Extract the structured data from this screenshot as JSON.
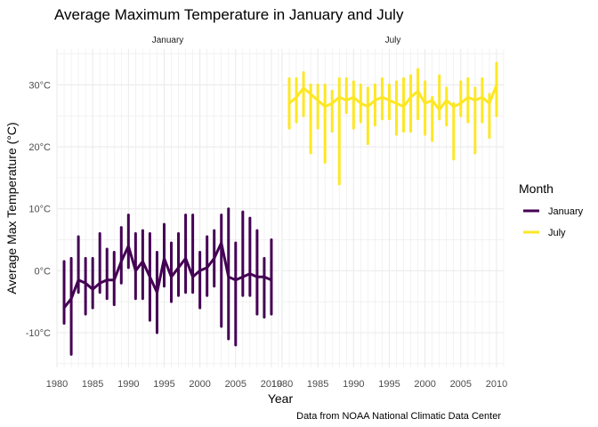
{
  "chart_data": {
    "type": "line",
    "title": "Average Maximum Temperature in January and July",
    "xlabel": "Year",
    "ylabel": "Average Max Temperature (°C)",
    "caption": "Data from NOAA National Climatic Data Center",
    "panels": [
      "January",
      "July"
    ],
    "xlim": [
      1980,
      2011
    ],
    "ylim": [
      -15.6,
      35.8
    ],
    "x_ticks": [
      1980,
      1985,
      1990,
      1995,
      2000,
      2005,
      2010
    ],
    "x_tick_labels": [
      "1980",
      "1985",
      "1990",
      "1995",
      "2000",
      "2005",
      "2010"
    ],
    "y_ticks": [
      -10,
      0,
      10,
      20,
      30
    ],
    "y_tick_labels": [
      "-10°C",
      "0°C",
      "10°C",
      "20°C",
      "30°C"
    ],
    "grid": true,
    "legend": {
      "title": "Month",
      "position": "right"
    },
    "series": [
      {
        "name": "January",
        "panel": "January",
        "color": "#440154",
        "mean": [
          [
            1981,
            -6.0
          ],
          [
            1982,
            -4.5
          ],
          [
            1983,
            -1.5
          ],
          [
            1984,
            -2.0
          ],
          [
            1985,
            -3.0
          ],
          [
            1986,
            -2.0
          ],
          [
            1987,
            -1.5
          ],
          [
            1988,
            -1.5
          ],
          [
            1989,
            1.5
          ],
          [
            1990,
            4.0
          ],
          [
            1991,
            0.0
          ],
          [
            1992,
            1.5
          ],
          [
            1993,
            -1.0
          ],
          [
            1994,
            -3.5
          ],
          [
            1995,
            2.0
          ],
          [
            1996,
            -1.0
          ],
          [
            1997,
            0.5
          ],
          [
            1998,
            2.0
          ],
          [
            1999,
            -1.0
          ],
          [
            2000,
            0.0
          ],
          [
            2001,
            0.5
          ],
          [
            2002,
            2.0
          ],
          [
            2003,
            4.5
          ],
          [
            2004,
            -1.0
          ],
          [
            2005,
            -1.5
          ],
          [
            2006,
            -1.0
          ],
          [
            2007,
            -0.5
          ],
          [
            2008,
            -1.0
          ],
          [
            2009,
            -1.0
          ],
          [
            2010,
            -1.5
          ]
        ],
        "range": [
          [
            1981,
            -8.5,
            1.5
          ],
          [
            1982,
            -13.5,
            2.0
          ],
          [
            1983,
            -3.5,
            5.5
          ],
          [
            1984,
            -7.0,
            2.0
          ],
          [
            1985,
            -6.0,
            2.0
          ],
          [
            1986,
            -3.5,
            6.0
          ],
          [
            1987,
            -4.5,
            3.5
          ],
          [
            1988,
            -5.5,
            3.0
          ],
          [
            1989,
            -2.0,
            7.0
          ],
          [
            1990,
            0.5,
            9.0
          ],
          [
            1991,
            -4.5,
            6.0
          ],
          [
            1992,
            -4.5,
            6.5
          ],
          [
            1993,
            -8.0,
            6.0
          ],
          [
            1994,
            -10.0,
            3.0
          ],
          [
            1995,
            -2.5,
            7.5
          ],
          [
            1996,
            -5.0,
            4.5
          ],
          [
            1997,
            -4.0,
            6.0
          ],
          [
            1998,
            -3.5,
            9.0
          ],
          [
            1999,
            -3.5,
            9.0
          ],
          [
            2000,
            -6.0,
            3.0
          ],
          [
            2001,
            -4.0,
            5.5
          ],
          [
            2002,
            -2.5,
            6.5
          ],
          [
            2003,
            -9.0,
            9.0
          ],
          [
            2004,
            -11.0,
            10.0
          ],
          [
            2005,
            -12.0,
            4.5
          ],
          [
            2006,
            -4.0,
            9.5
          ],
          [
            2007,
            -4.0,
            8.5
          ],
          [
            2008,
            -7.0,
            6.5
          ],
          [
            2009,
            -7.5,
            2.0
          ],
          [
            2010,
            -7.0,
            5.0
          ]
        ]
      },
      {
        "name": "July",
        "panel": "July",
        "color": "#FDE725",
        "mean": [
          [
            1981,
            27.0
          ],
          [
            1982,
            28.0
          ],
          [
            1983,
            29.5
          ],
          [
            1984,
            28.5
          ],
          [
            1985,
            27.5
          ],
          [
            1986,
            26.5
          ],
          [
            1987,
            27.0
          ],
          [
            1988,
            28.0
          ],
          [
            1989,
            27.5
          ],
          [
            1990,
            28.0
          ],
          [
            1991,
            27.0
          ],
          [
            1992,
            26.5
          ],
          [
            1993,
            27.5
          ],
          [
            1994,
            28.0
          ],
          [
            1995,
            27.5
          ],
          [
            1996,
            27.0
          ],
          [
            1997,
            26.5
          ],
          [
            1998,
            28.0
          ],
          [
            1999,
            29.0
          ],
          [
            2000,
            27.0
          ],
          [
            2001,
            27.5
          ],
          [
            2002,
            26.0
          ],
          [
            2003,
            27.5
          ],
          [
            2004,
            26.5
          ],
          [
            2005,
            27.0
          ],
          [
            2006,
            28.0
          ],
          [
            2007,
            27.5
          ],
          [
            2008,
            28.0
          ],
          [
            2009,
            27.0
          ],
          [
            2010,
            30.0
          ]
        ],
        "range": [
          [
            1981,
            23.0,
            31.0
          ],
          [
            1982,
            24.0,
            31.0
          ],
          [
            1983,
            25.0,
            32.0
          ],
          [
            1984,
            19.0,
            30.0
          ],
          [
            1985,
            23.0,
            30.0
          ],
          [
            1986,
            17.5,
            30.0
          ],
          [
            1987,
            22.5,
            29.0
          ],
          [
            1988,
            14.0,
            31.0
          ],
          [
            1989,
            25.5,
            31.0
          ],
          [
            1990,
            23.0,
            30.5
          ],
          [
            1991,
            24.0,
            30.0
          ],
          [
            1992,
            20.5,
            29.5
          ],
          [
            1993,
            23.5,
            30.0
          ],
          [
            1994,
            24.5,
            31.0
          ],
          [
            1995,
            24.5,
            30.0
          ],
          [
            1996,
            22.0,
            30.5
          ],
          [
            1997,
            22.5,
            31.0
          ],
          [
            1998,
            22.5,
            31.5
          ],
          [
            1999,
            24.5,
            32.5
          ],
          [
            2000,
            22.0,
            30.5
          ],
          [
            2001,
            21.0,
            28.0
          ],
          [
            2002,
            24.5,
            31.5
          ],
          [
            2003,
            23.5,
            29.5
          ],
          [
            2004,
            18.0,
            27.0
          ],
          [
            2005,
            25.0,
            30.5
          ],
          [
            2006,
            24.0,
            31.0
          ],
          [
            2007,
            19.0,
            29.5
          ],
          [
            2008,
            24.0,
            31.0
          ],
          [
            2009,
            21.5,
            28.5
          ],
          [
            2010,
            25.0,
            33.5
          ]
        ]
      }
    ]
  }
}
